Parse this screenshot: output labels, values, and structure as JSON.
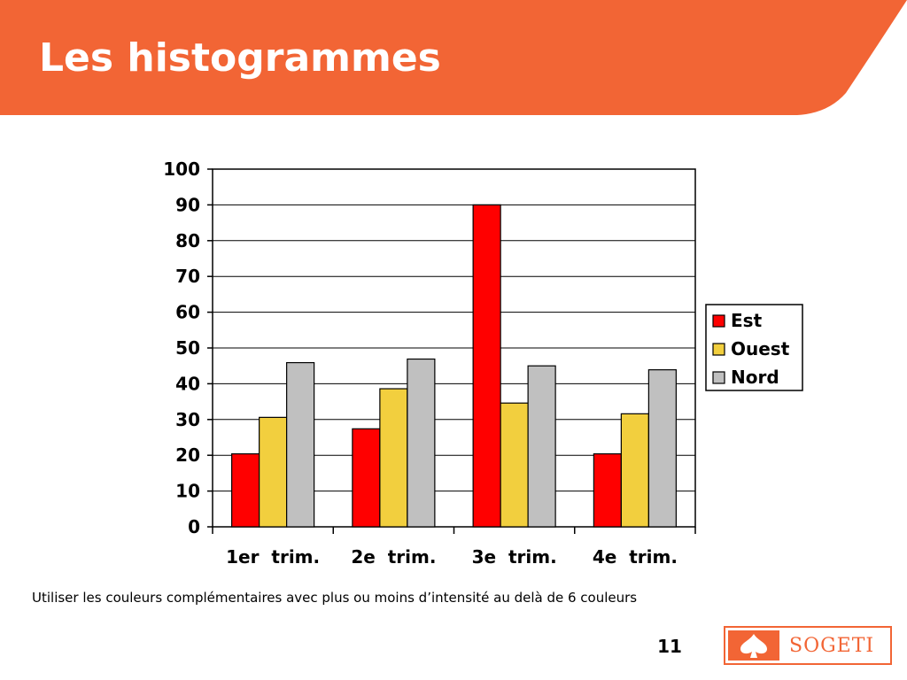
{
  "slide": {
    "title": "Les histogrammes",
    "caption": "Utiliser les couleurs complémentaires avec plus ou moins d’intensité au delà de 6 couleurs",
    "page_number": "11",
    "logo_text": "SOGETI"
  },
  "colors": {
    "header": "#f26535",
    "est": "#ff0000",
    "ouest": "#f2cf3e",
    "nord": "#c0c0c0"
  },
  "chart_data": {
    "type": "bar",
    "title": "",
    "xlabel": "",
    "ylabel": "",
    "categories": [
      "1er  trim.",
      "2e  trim.",
      "3e  trim.",
      "4e  trim."
    ],
    "series": [
      {
        "name": "Est",
        "color": "#ff0000",
        "values": [
          20.4,
          27.4,
          90,
          20.4
        ]
      },
      {
        "name": "Ouest",
        "color": "#f2cf3e",
        "values": [
          30.6,
          38.6,
          34.6,
          31.6
        ]
      },
      {
        "name": "Nord",
        "color": "#c0c0c0",
        "values": [
          45.9,
          46.9,
          45,
          43.9
        ]
      }
    ],
    "ylim": [
      0,
      100
    ],
    "yticks": [
      "0",
      "10",
      "20",
      "30",
      "40",
      "50",
      "60",
      "70",
      "80",
      "90",
      "100"
    ],
    "grid": true,
    "legend": "right"
  }
}
